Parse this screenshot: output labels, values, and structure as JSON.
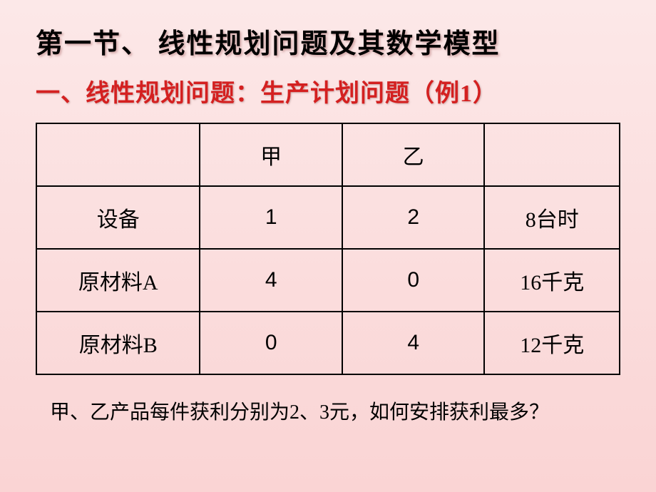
{
  "title": "第一节、 线性规划问题及其数学模型",
  "subtitle": " 一、线性规划问题：生产计划问题（例1）",
  "table": {
    "cols": [
      "",
      "甲",
      "乙",
      ""
    ],
    "rows": [
      [
        "设备",
        "1",
        "2",
        "8台时"
      ],
      [
        "原材料A",
        "4",
        "0",
        "16千克"
      ],
      [
        "原材料B",
        "0",
        "4",
        "12千克"
      ]
    ]
  },
  "footer": "甲、乙产品每件获利分别为2、3元，如何安排获利最多？"
}
